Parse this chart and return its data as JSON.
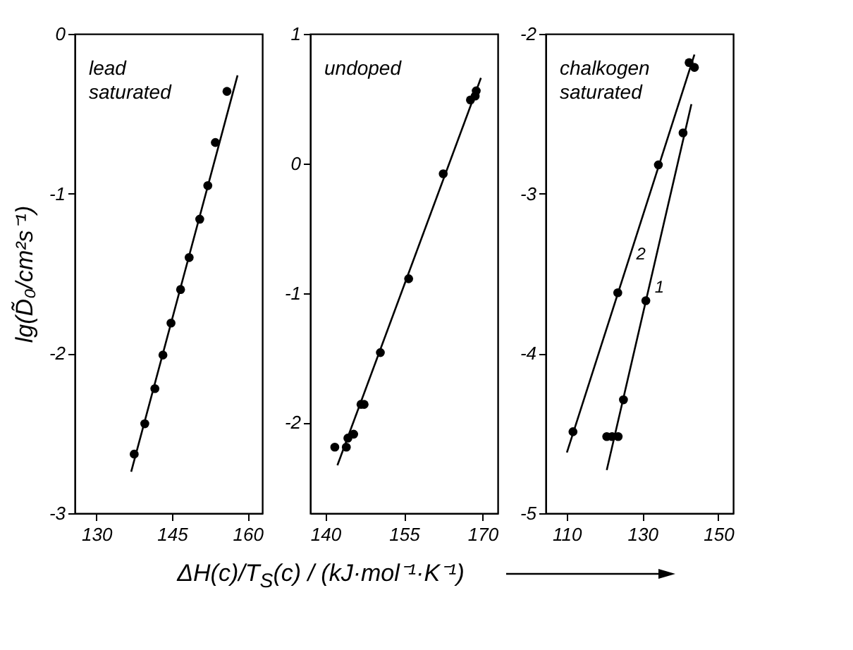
{
  "chart_data": [
    {
      "type": "scatter",
      "ylabel": "lg(D̃₀/cm²s⁻¹)",
      "annotations": [
        "lead saturated"
      ],
      "xlim": [
        125.7,
        162.9
      ],
      "xticks": [
        130,
        145,
        160
      ],
      "ylim": [
        -3,
        0
      ],
      "yticks": [
        -3,
        -2,
        -1,
        0
      ],
      "grid": false,
      "series": [
        {
          "type": "scatter",
          "marker": "circle",
          "color": "#000000",
          "x": [
            137.5,
            139.6,
            141.6,
            143.2,
            144.8,
            146.7,
            148.4,
            150.5,
            152.1,
            153.6,
            155.9
          ],
          "values": [
            -2.63,
            -2.44,
            -2.22,
            -2.01,
            -1.81,
            -1.6,
            -1.4,
            -1.16,
            -0.95,
            -0.68,
            -0.36
          ]
        },
        {
          "type": "line",
          "color": "#000000",
          "x": [
            136.9,
            158.0
          ],
          "values": [
            -2.74,
            -0.26
          ]
        }
      ]
    },
    {
      "type": "scatter",
      "xlabel": "ΔH(c)/T$_{S}$(c) / (kJ·mol⁻¹·K⁻¹)",
      "annotations": [
        "undoped"
      ],
      "xlim": [
        137.1,
        172.9
      ],
      "xticks": [
        140,
        155,
        170
      ],
      "ylim": [
        -2.7,
        1
      ],
      "yticks": [
        -2,
        -1,
        0,
        1
      ],
      "grid": false,
      "series": [
        {
          "type": "scatter",
          "marker": "circle",
          "color": "#000000",
          "x": [
            141.8,
            144.0,
            144.3,
            145.4,
            146.8,
            147.4,
            150.5,
            155.9,
            162.5,
            167.7,
            168.6,
            168.8
          ],
          "values": [
            -2.19,
            -2.19,
            -2.12,
            -2.09,
            -1.86,
            -1.86,
            -1.46,
            -0.89,
            -0.08,
            0.49,
            0.52,
            0.56
          ]
        },
        {
          "type": "line",
          "color": "#000000",
          "x": [
            142.3,
            169.7
          ],
          "values": [
            -2.33,
            0.66
          ]
        }
      ]
    },
    {
      "type": "scatter",
      "annotations": [
        "chalkogen saturated"
      ],
      "xlim": [
        104.5,
        153.9
      ],
      "xticks": [
        110,
        130,
        150
      ],
      "ylim": [
        -5,
        -2
      ],
      "yticks": [
        -5,
        -4,
        -3,
        -2
      ],
      "grid": false,
      "series": [
        {
          "type": "scatter",
          "marker": "circle",
          "color": "#000000",
          "x": [
            120.6,
            122.0,
            123.6,
            125.0,
            130.9,
            140.7
          ],
          "values": [
            -4.52,
            -4.52,
            -4.52,
            -4.29,
            -3.67,
            -2.62
          ]
        },
        {
          "type": "line",
          "name": "1",
          "color": "#000000",
          "x": [
            120.6,
            142.9
          ],
          "values": [
            -4.73,
            -2.44
          ]
        },
        {
          "type": "scatter",
          "marker": "circle",
          "color": "#000000",
          "x": [
            111.7,
            123.5,
            134.2,
            142.3,
            143.7
          ],
          "values": [
            -4.49,
            -3.62,
            -2.82,
            -2.18,
            -2.21
          ]
        },
        {
          "type": "line",
          "name": "2",
          "color": "#000000",
          "x": [
            110.1,
            143.7
          ],
          "values": [
            -4.62,
            -2.13
          ]
        }
      ]
    }
  ]
}
